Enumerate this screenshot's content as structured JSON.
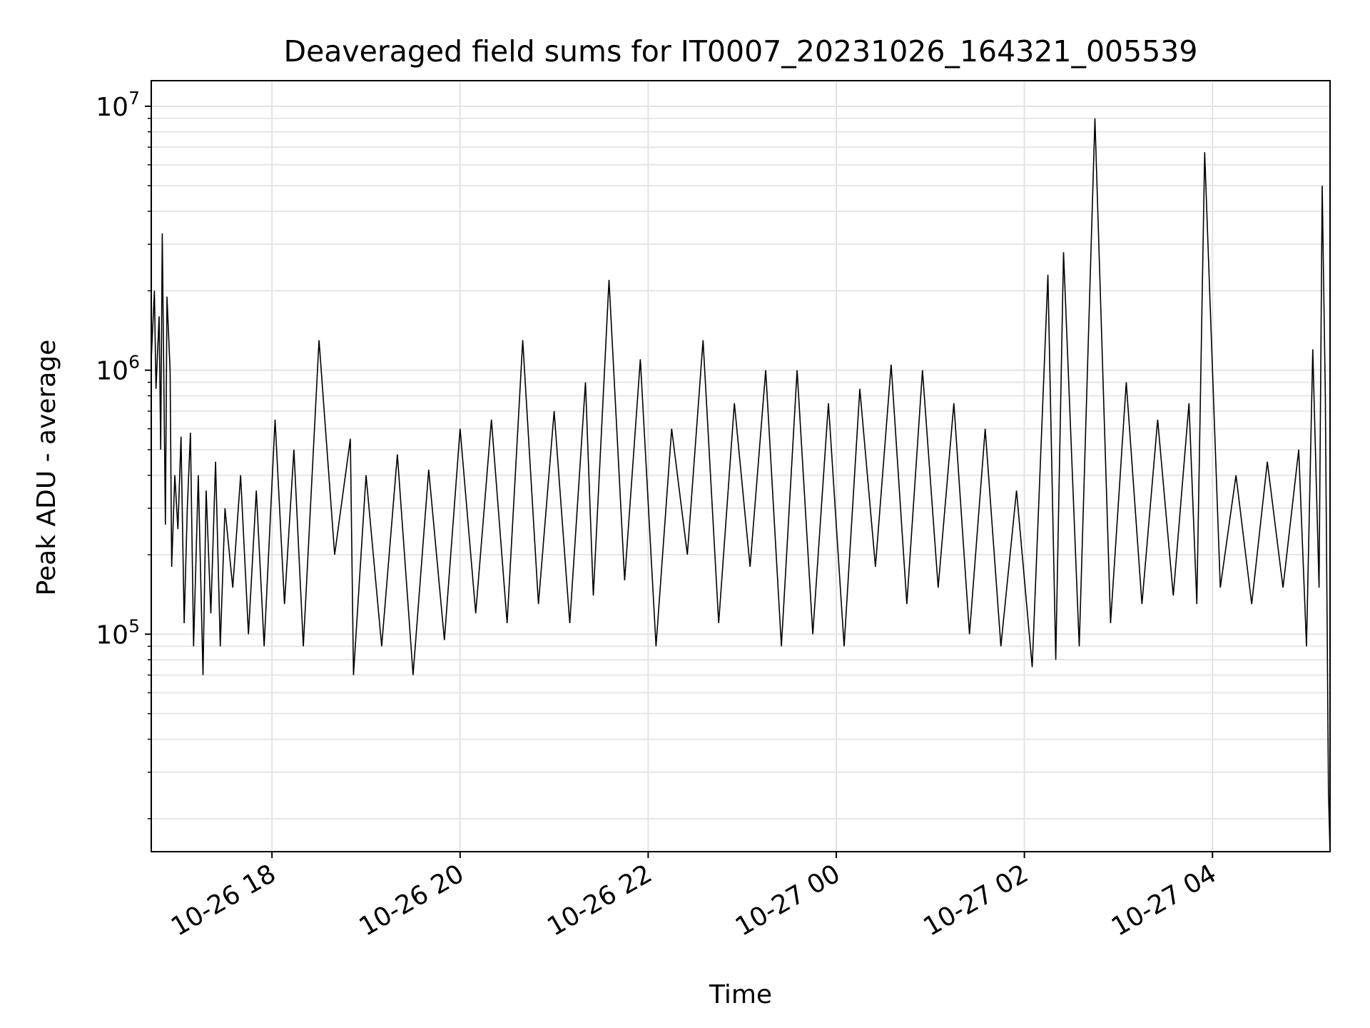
{
  "chart_data": {
    "type": "line",
    "title": "Deaveraged field sums for IT0007_20231026_164321_005539",
    "xlabel": "Time",
    "ylabel": "Peak ADU - average",
    "yscale": "log",
    "ylim": [
      15000,
      12500000
    ],
    "xlim": [
      "2023-10-26 16:43",
      "2023-10-27 05:15"
    ],
    "grid": true,
    "line_color": "#000000",
    "x_ticks": [
      {
        "value": "2023-10-26 18:00",
        "label": "10-26 18"
      },
      {
        "value": "2023-10-26 20:00",
        "label": "10-26 20"
      },
      {
        "value": "2023-10-26 22:00",
        "label": "10-26 22"
      },
      {
        "value": "2023-10-27 00:00",
        "label": "10-27 00"
      },
      {
        "value": "2023-10-27 02:00",
        "label": "10-27 02"
      },
      {
        "value": "2023-10-27 04:00",
        "label": "10-27 04"
      }
    ],
    "y_ticks": [
      {
        "value": 100000,
        "base": "10",
        "exp": "5"
      },
      {
        "value": 1000000,
        "base": "10",
        "exp": "6"
      },
      {
        "value": 10000000,
        "base": "10",
        "exp": "7"
      }
    ],
    "series": [
      {
        "name": "",
        "x": [
          "2023-10-26 16:43",
          "2023-10-26 16:45",
          "2023-10-26 16:46",
          "2023-10-26 16:48",
          "2023-10-26 16:49",
          "2023-10-26 16:50",
          "2023-10-26 16:52",
          "2023-10-26 16:53",
          "2023-10-26 16:55",
          "2023-10-26 16:56",
          "2023-10-26 16:58",
          "2023-10-26 17:00",
          "2023-10-26 17:02",
          "2023-10-26 17:04",
          "2023-10-26 17:06",
          "2023-10-26 17:08",
          "2023-10-26 17:10",
          "2023-10-26 17:13",
          "2023-10-26 17:16",
          "2023-10-26 17:18",
          "2023-10-26 17:21",
          "2023-10-26 17:24",
          "2023-10-26 17:27",
          "2023-10-26 17:30",
          "2023-10-26 17:35",
          "2023-10-26 17:40",
          "2023-10-26 17:45",
          "2023-10-26 17:50",
          "2023-10-26 17:55",
          "2023-10-26 18:02",
          "2023-10-26 18:08",
          "2023-10-26 18:14",
          "2023-10-26 18:20",
          "2023-10-26 18:30",
          "2023-10-26 18:40",
          "2023-10-26 18:50",
          "2023-10-26 18:52",
          "2023-10-26 19:00",
          "2023-10-26 19:10",
          "2023-10-26 19:20",
          "2023-10-26 19:30",
          "2023-10-26 19:40",
          "2023-10-26 19:50",
          "2023-10-26 20:00",
          "2023-10-26 20:10",
          "2023-10-26 20:20",
          "2023-10-26 20:30",
          "2023-10-26 20:40",
          "2023-10-26 20:50",
          "2023-10-26 21:00",
          "2023-10-26 21:10",
          "2023-10-26 21:20",
          "2023-10-26 21:25",
          "2023-10-26 21:35",
          "2023-10-26 21:45",
          "2023-10-26 21:55",
          "2023-10-26 22:05",
          "2023-10-26 22:15",
          "2023-10-26 22:25",
          "2023-10-26 22:35",
          "2023-10-26 22:45",
          "2023-10-26 22:55",
          "2023-10-26 23:05",
          "2023-10-26 23:15",
          "2023-10-26 23:25",
          "2023-10-26 23:35",
          "2023-10-26 23:45",
          "2023-10-26 23:55",
          "2023-10-27 00:05",
          "2023-10-27 00:15",
          "2023-10-27 00:25",
          "2023-10-27 00:35",
          "2023-10-27 00:45",
          "2023-10-27 00:55",
          "2023-10-27 01:05",
          "2023-10-27 01:15",
          "2023-10-27 01:25",
          "2023-10-27 01:35",
          "2023-10-27 01:45",
          "2023-10-27 01:55",
          "2023-10-27 02:05",
          "2023-10-27 02:15",
          "2023-10-27 02:20",
          "2023-10-27 02:25",
          "2023-10-27 02:35",
          "2023-10-27 02:45",
          "2023-10-27 02:55",
          "2023-10-27 03:05",
          "2023-10-27 03:15",
          "2023-10-27 03:25",
          "2023-10-27 03:35",
          "2023-10-27 03:45",
          "2023-10-27 03:50",
          "2023-10-27 03:55",
          "2023-10-27 04:05",
          "2023-10-27 04:15",
          "2023-10-27 04:25",
          "2023-10-27 04:35",
          "2023-10-27 04:45",
          "2023-10-27 04:55",
          "2023-10-27 05:00",
          "2023-10-27 05:04",
          "2023-10-27 05:08",
          "2023-10-27 05:10",
          "2023-10-27 05:12",
          "2023-10-27 05:14",
          "2023-10-27 05:15"
        ],
        "y": [
          1100000,
          2000000,
          850000,
          1600000,
          500000,
          3300000,
          260000,
          1900000,
          1000000,
          180000,
          400000,
          250000,
          560000,
          110000,
          300000,
          580000,
          90000,
          400000,
          70000,
          350000,
          120000,
          450000,
          90000,
          300000,
          150000,
          400000,
          100000,
          350000,
          90000,
          650000,
          130000,
          500000,
          90000,
          1300000,
          200000,
          550000,
          70000,
          400000,
          90000,
          480000,
          70000,
          420000,
          95000,
          600000,
          120000,
          650000,
          110000,
          1300000,
          130000,
          700000,
          110000,
          900000,
          140000,
          2200000,
          160000,
          1100000,
          90000,
          600000,
          200000,
          1300000,
          110000,
          750000,
          180000,
          1000000,
          90000,
          1000000,
          100000,
          750000,
          90000,
          850000,
          180000,
          1050000,
          130000,
          1000000,
          150000,
          750000,
          100000,
          600000,
          90000,
          350000,
          75000,
          2300000,
          80000,
          2800000,
          90000,
          9000000,
          110000,
          900000,
          130000,
          650000,
          140000,
          750000,
          130000,
          6700000,
          150000,
          400000,
          130000,
          450000,
          150000,
          500000,
          90000,
          1200000,
          150000,
          5000000,
          800000,
          25000,
          15000
        ]
      }
    ]
  }
}
